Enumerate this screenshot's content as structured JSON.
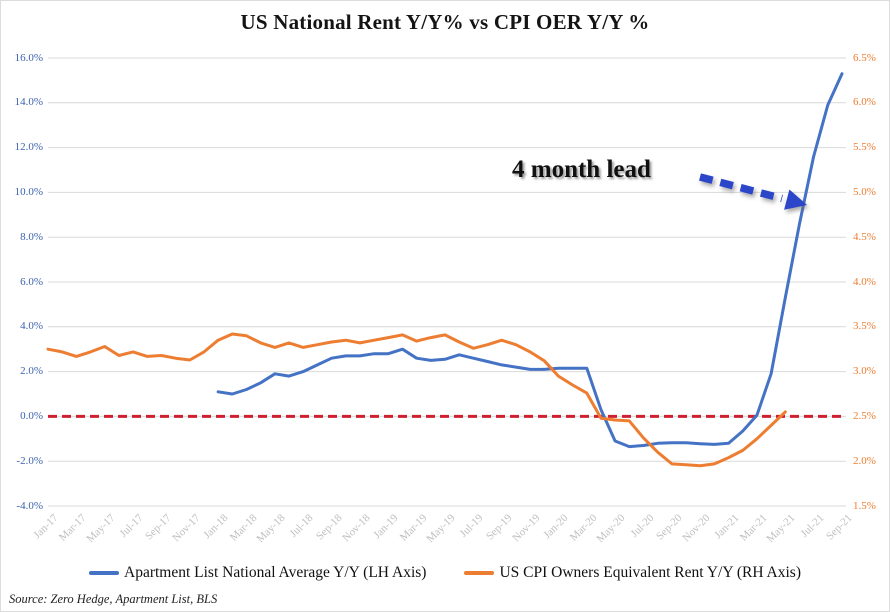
{
  "chart": {
    "title": "US National Rent Y/Y% vs CPI OER Y/Y %",
    "annotation_text": "4 month lead",
    "source": "Source: Zero Hedge, Apartment List, BLS"
  },
  "legend": {
    "items": [
      {
        "label": "Apartment List  National Average Y/Y (LH Axis)",
        "color": "#4472C4"
      },
      {
        "label": "US CPI Owners Equivalent Rent Y/Y (RH Axis)",
        "color": "#ED7D31"
      }
    ]
  },
  "chart_data": {
    "type": "line",
    "title": "US National Rent Y/Y% vs CPI OER Y/Y %",
    "grid": "horizontal",
    "legend_position": "bottom",
    "x_tick_labels": [
      "Jan-17",
      "Mar-17",
      "May-17",
      "Jul-17",
      "Sep-17",
      "Nov-17",
      "Jan-18",
      "Mar-18",
      "May-18",
      "Jul-18",
      "Sep-18",
      "Nov-18",
      "Jan-19",
      "Mar-19",
      "May-19",
      "Jul-19",
      "Sep-19",
      "Nov-19",
      "Jan-20",
      "Mar-20",
      "May-20",
      "Jul-20",
      "Sep-20",
      "Nov-20",
      "Jan-21",
      "Mar-21",
      "May-21",
      "Jul-21",
      "Sep-21"
    ],
    "x_months_total": 56,
    "x_tick_label_color": "#BFBFBF",
    "gridline_color": "#D9D9D9",
    "left_axis": {
      "min": -4,
      "max": 16,
      "step": 2,
      "label_color": "#3E63AD",
      "tick_labels": [
        "16.0%",
        "14.0%",
        "12.0%",
        "10.0%",
        "8.0%",
        "6.0%",
        "4.0%",
        "2.0%",
        "0.0%",
        "-2.0%",
        "-4.0%"
      ]
    },
    "right_axis": {
      "min": 1.5,
      "max": 6.5,
      "step": 0.5,
      "label_color": "#ED7D31",
      "tick_labels": [
        "6.5%",
        "6.0%",
        "5.5%",
        "5.0%",
        "4.5%",
        "4.0%",
        "3.5%",
        "3.0%",
        "2.5%",
        "2.0%",
        "1.5%"
      ]
    },
    "reference_line": {
      "axis": "left",
      "value": 0.0,
      "color": "#CE2030",
      "style": "dashed"
    },
    "annotation": {
      "text": "4 month lead",
      "arrow_color": "#2B46C9"
    },
    "series": [
      {
        "id": "apartment-list-line",
        "name": "Apartment List National Average Y/Y (LH Axis)",
        "axis": "left",
        "color": "#4472C4",
        "start_month_index": 12,
        "start_label": "Jan-18",
        "end_label": "Sep-21",
        "monthly_values": [
          1.1,
          1.0,
          1.2,
          1.5,
          1.9,
          1.8,
          2.0,
          2.3,
          2.6,
          2.7,
          2.7,
          2.8,
          2.8,
          3.0,
          2.6,
          2.5,
          2.55,
          2.75,
          2.6,
          2.45,
          2.3,
          2.2,
          2.1,
          2.1,
          2.15,
          2.15,
          2.15,
          0.3,
          -1.1,
          -1.35,
          -1.3,
          -1.2,
          -1.18,
          -1.18,
          -1.22,
          -1.25,
          -1.2,
          -0.65,
          0.05,
          1.9,
          5.3,
          8.6,
          11.6,
          13.9,
          15.3
        ]
      },
      {
        "id": "cpi-oer-line",
        "name": "US CPI Owners Equivalent Rent Y/Y (RH Axis)",
        "axis": "right",
        "color": "#ED7D31",
        "start_month_index": 0,
        "start_label": "Jan-17",
        "end_label": "May-21",
        "monthly_values": [
          3.25,
          3.22,
          3.17,
          3.22,
          3.28,
          3.18,
          3.22,
          3.17,
          3.18,
          3.15,
          3.13,
          3.22,
          3.35,
          3.42,
          3.4,
          3.32,
          3.27,
          3.32,
          3.27,
          3.3,
          3.33,
          3.35,
          3.32,
          3.35,
          3.38,
          3.41,
          3.34,
          3.38,
          3.41,
          3.33,
          3.26,
          3.3,
          3.35,
          3.3,
          3.22,
          3.12,
          2.95,
          2.85,
          2.76,
          2.48,
          2.46,
          2.45,
          2.26,
          2.1,
          1.97,
          1.96,
          1.95,
          1.97,
          2.04,
          2.12,
          2.25,
          2.4,
          2.55
        ]
      }
    ]
  }
}
